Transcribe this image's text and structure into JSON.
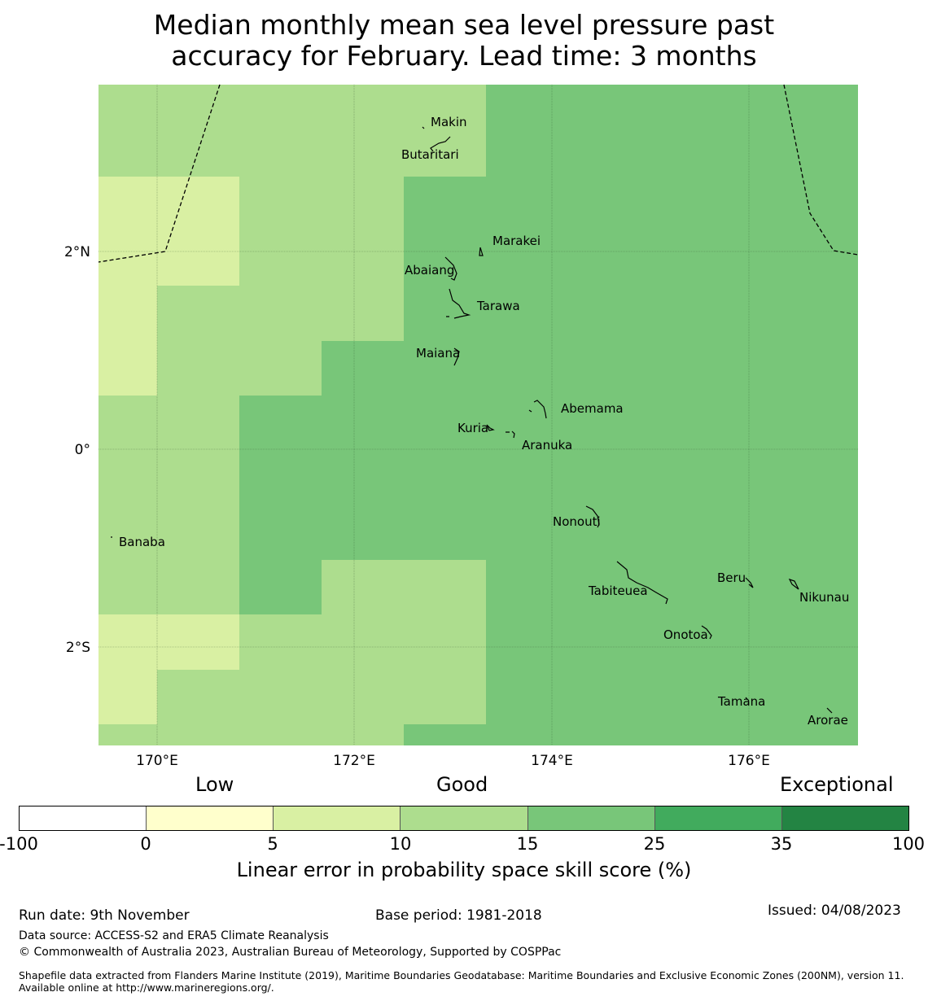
{
  "title_line1": "Median monthly mean sea level pressure past",
  "title_line2": "accuracy for February. Lead time: 3 months",
  "axes": {
    "lat_labels": [
      "2°N",
      "0°",
      "2°S"
    ],
    "lon_labels": [
      "170°E",
      "172°E",
      "174°E",
      "176°E"
    ]
  },
  "islands": [
    "Makin",
    "Butaritari",
    "Marakei",
    "Abaiang",
    "Tarawa",
    "Maiana",
    "Abemama",
    "Kuria",
    "Aranuka",
    "Nonouti",
    "Banaba",
    "Tabiteuea",
    "Beru",
    "Nikunau",
    "Onotoa",
    "Tamana",
    "Arorae"
  ],
  "colors": {
    "lt0": "#ffffff",
    "c0_5": "#ffffcc",
    "c5_10": "#d9f0a3",
    "c10_15": "#addd8e",
    "c15_25": "#78c679",
    "c25_35": "#41ab5d",
    "c35_100": "#238443"
  },
  "legend": {
    "low": "Low",
    "good": "Good",
    "exceptional": "Exceptional",
    "ticks": [
      "-100",
      "0",
      "5",
      "10",
      "15",
      "25",
      "35",
      "100"
    ],
    "label": "Linear error in probability space skill score (%)"
  },
  "footer": {
    "run_date": "Run date: 9th November",
    "base_period": "Base period: 1981-2018",
    "issued": "Issued: 04/08/2023",
    "data_source": "Data source: ACCESS-S2 and ERA5 Climate Reanalysis",
    "copyright": "© Commonwealth of Australia 2023, Australian Bureau of Meteorology, Supported by COSPPac",
    "shapefile": "Shapefile data extracted from Flanders Marine Institute (2019), Maritime Boundaries Geodatabase: Maritime Boundaries and Exclusive Economic Zones (200NM), version 11. Available online at http://www.marineregions.org/."
  }
}
